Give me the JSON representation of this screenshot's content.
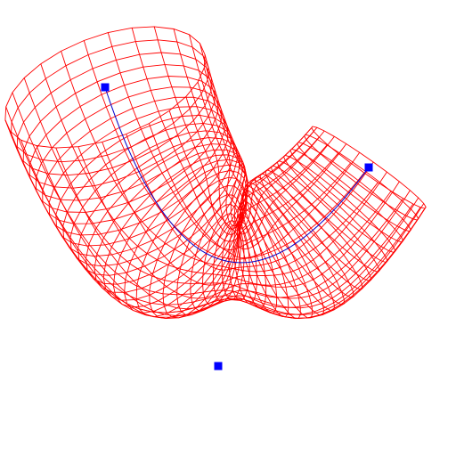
{
  "scene": {
    "background": "#ffffff",
    "mesh_color": "#ff0000",
    "curve_color": "#0000cc",
    "control_point_color": "#0000ff",
    "control_point_count": 3
  }
}
